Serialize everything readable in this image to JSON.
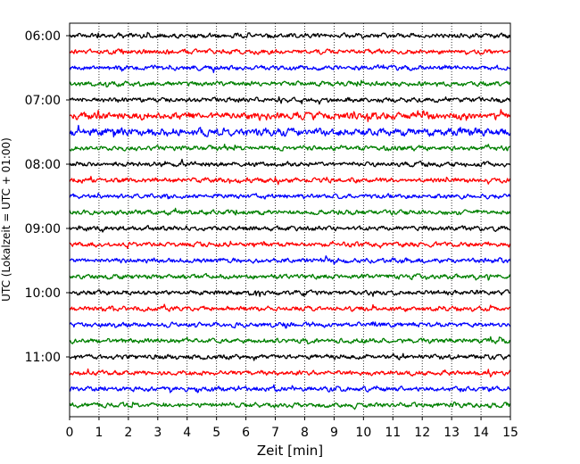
{
  "chart_data": {
    "type": "line",
    "title": "",
    "xlabel": "Zeit  [min]",
    "ylabel": "UTC (Lokalzeit = UTC + 01:00)",
    "xlim": [
      0,
      15
    ],
    "x_ticks": [
      "0",
      "1",
      "2",
      "3",
      "4",
      "5",
      "6",
      "7",
      "8",
      "9",
      "10",
      "11",
      "12",
      "13",
      "14",
      "15"
    ],
    "y_tick_labels": [
      "06:00",
      "07:00",
      "08:00",
      "09:00",
      "10:00",
      "11:00"
    ],
    "grid": "vertical-dotted",
    "colors": [
      "#000000",
      "#ff0000",
      "#0000ff",
      "#008000"
    ],
    "traces": [
      {
        "start": "06:00",
        "color": "#000000",
        "amplitude": 0.25
      },
      {
        "start": "06:15",
        "color": "#ff0000",
        "amplitude": 0.25
      },
      {
        "start": "06:30",
        "color": "#0000ff",
        "amplitude": 0.25
      },
      {
        "start": "06:45",
        "color": "#008000",
        "amplitude": 0.25
      },
      {
        "start": "07:00",
        "color": "#000000",
        "amplitude": 0.25
      },
      {
        "start": "07:15",
        "color": "#ff0000",
        "amplitude": 0.4
      },
      {
        "start": "07:30",
        "color": "#0000ff",
        "amplitude": 0.4
      },
      {
        "start": "07:45",
        "color": "#008000",
        "amplitude": 0.25
      },
      {
        "start": "08:00",
        "color": "#000000",
        "amplitude": 0.25
      },
      {
        "start": "08:15",
        "color": "#ff0000",
        "amplitude": 0.25
      },
      {
        "start": "08:30",
        "color": "#0000ff",
        "amplitude": 0.25
      },
      {
        "start": "08:45",
        "color": "#008000",
        "amplitude": 0.25
      },
      {
        "start": "09:00",
        "color": "#000000",
        "amplitude": 0.25
      },
      {
        "start": "09:15",
        "color": "#ff0000",
        "amplitude": 0.25
      },
      {
        "start": "09:30",
        "color": "#0000ff",
        "amplitude": 0.25
      },
      {
        "start": "09:45",
        "color": "#008000",
        "amplitude": 0.25
      },
      {
        "start": "10:00",
        "color": "#000000",
        "amplitude": 0.25
      },
      {
        "start": "10:15",
        "color": "#ff0000",
        "amplitude": 0.25
      },
      {
        "start": "10:30",
        "color": "#0000ff",
        "amplitude": 0.25
      },
      {
        "start": "10:45",
        "color": "#008000",
        "amplitude": 0.25
      },
      {
        "start": "11:00",
        "color": "#000000",
        "amplitude": 0.25
      },
      {
        "start": "11:15",
        "color": "#ff0000",
        "amplitude": 0.25
      },
      {
        "start": "11:30",
        "color": "#0000ff",
        "amplitude": 0.25
      },
      {
        "start": "11:45",
        "color": "#008000",
        "amplitude": 0.25
      }
    ]
  }
}
